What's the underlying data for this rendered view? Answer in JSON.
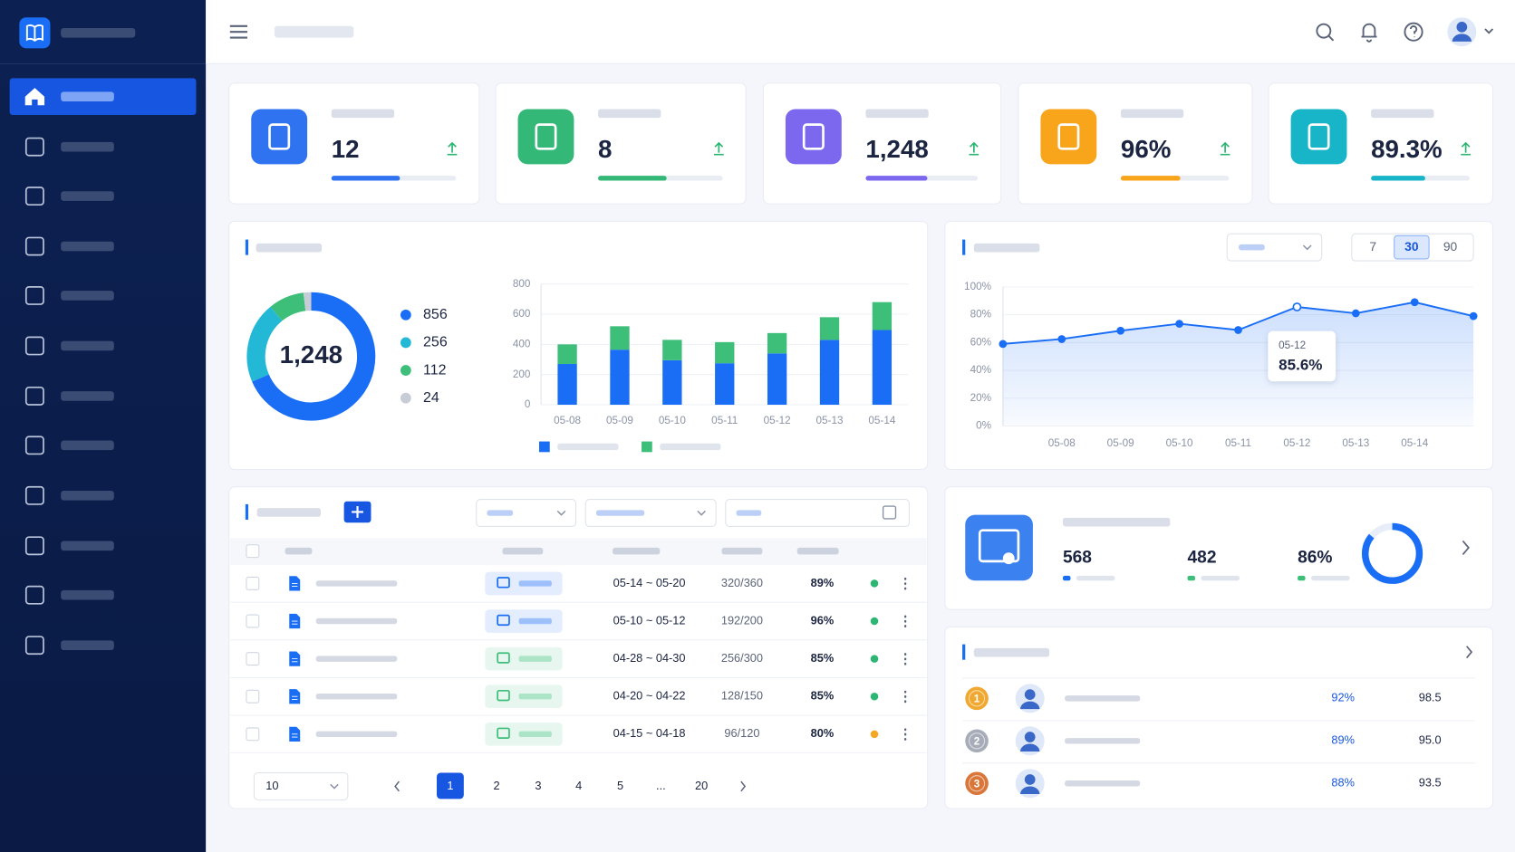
{
  "stat_cards": [
    {
      "value": "12",
      "color": "#2f73f0"
    },
    {
      "value": "8",
      "color": "#34b877"
    },
    {
      "value": "1,248",
      "color": "#7b68ee"
    },
    {
      "value": "96%",
      "color": "#f8a51c"
    },
    {
      "value": "89.3%",
      "color": "#18b5c9"
    }
  ],
  "donut_chart": {
    "type": "donut",
    "total_label": "1,248",
    "values": [
      856,
      256,
      112,
      24
    ],
    "colors": [
      "#1a6ef5",
      "#22b8d6",
      "#3dbf7a",
      "#c8ccd6"
    ]
  },
  "bar_chart": {
    "type": "bar",
    "stacked": true,
    "categories": [
      "05-08",
      "05-09",
      "05-10",
      "05-11",
      "05-12",
      "05-13",
      "05-14"
    ],
    "series": [
      {
        "color": "#1a6ef5",
        "values": [
          270,
          365,
          295,
          275,
          340,
          430,
          495
        ]
      },
      {
        "color": "#3dbf7a",
        "values": [
          130,
          155,
          135,
          140,
          135,
          150,
          185
        ]
      }
    ],
    "ylim": [
      0,
      800
    ],
    "yticks": [
      0,
      200,
      400,
      600,
      800
    ]
  },
  "line_chart": {
    "type": "line",
    "categories": [
      null,
      "05-08",
      "05-09",
      "05-10",
      "05-11",
      "05-12",
      "05-13",
      "05-14",
      null
    ],
    "values": [
      59,
      62.5,
      68.5,
      73.5,
      69,
      85.6,
      81,
      89,
      79
    ],
    "value_labels": [
      null,
      null,
      null,
      null,
      null,
      "85.6%",
      null,
      null,
      null
    ],
    "color": "#1a6ef5",
    "ylim": [
      0,
      100
    ],
    "yticks": [
      {
        "value": 0,
        "label": "0%"
      },
      {
        "value": 20,
        "label": "20%"
      },
      {
        "value": 40,
        "label": "40%"
      },
      {
        "value": 60,
        "label": "60%"
      },
      {
        "value": 80,
        "label": "80%"
      },
      {
        "value": 100,
        "label": "100%"
      }
    ]
  },
  "range_options": [
    "7",
    "30",
    "90"
  ],
  "table": {
    "rows": [
      {
        "dates": "05-14 ~ 05-20",
        "count": "320/360",
        "rate": "89%",
        "tag_color": "#1a6ef5",
        "status_color": "#2bb673"
      },
      {
        "dates": "05-10 ~ 05-12",
        "count": "192/200",
        "rate": "96%",
        "tag_color": "#1a6ef5",
        "status_color": "#2bb673"
      },
      {
        "dates": "04-28 ~ 04-30",
        "count": "256/300",
        "rate": "85%",
        "tag_color": "#3dbf7a",
        "status_color": "#2bb673"
      },
      {
        "dates": "04-20 ~ 04-22",
        "count": "128/150",
        "rate": "85%",
        "tag_color": "#3dbf7a",
        "status_color": "#2bb673"
      },
      {
        "dates": "04-15 ~ 04-18",
        "count": "96/120",
        "rate": "80%",
        "tag_color": "#3dbf7a",
        "status_color": "#f5a623"
      }
    ]
  },
  "pagination": {
    "page_size": "10",
    "pages": [
      "1",
      "2",
      "3",
      "4",
      "5",
      "...",
      "20"
    ]
  },
  "summary": {
    "items": [
      {
        "value": 568,
        "color": "#1a6ef5"
      },
      {
        "value": 482,
        "color": "#3dbf7a"
      },
      {
        "value": 86,
        "label": "86%",
        "color": "#3dbf7a"
      }
    ]
  },
  "ranking": {
    "rows": [
      {
        "rank": "1",
        "rate": "92%",
        "score": "98.5",
        "medal_color": "#f0a830"
      },
      {
        "rank": "2",
        "rate": "89%",
        "score": "95.0",
        "medal_color": "#a7adb8"
      },
      {
        "rank": "3",
        "rate": "88%",
        "score": "93.5",
        "medal_color": "#d9773a"
      }
    ]
  }
}
